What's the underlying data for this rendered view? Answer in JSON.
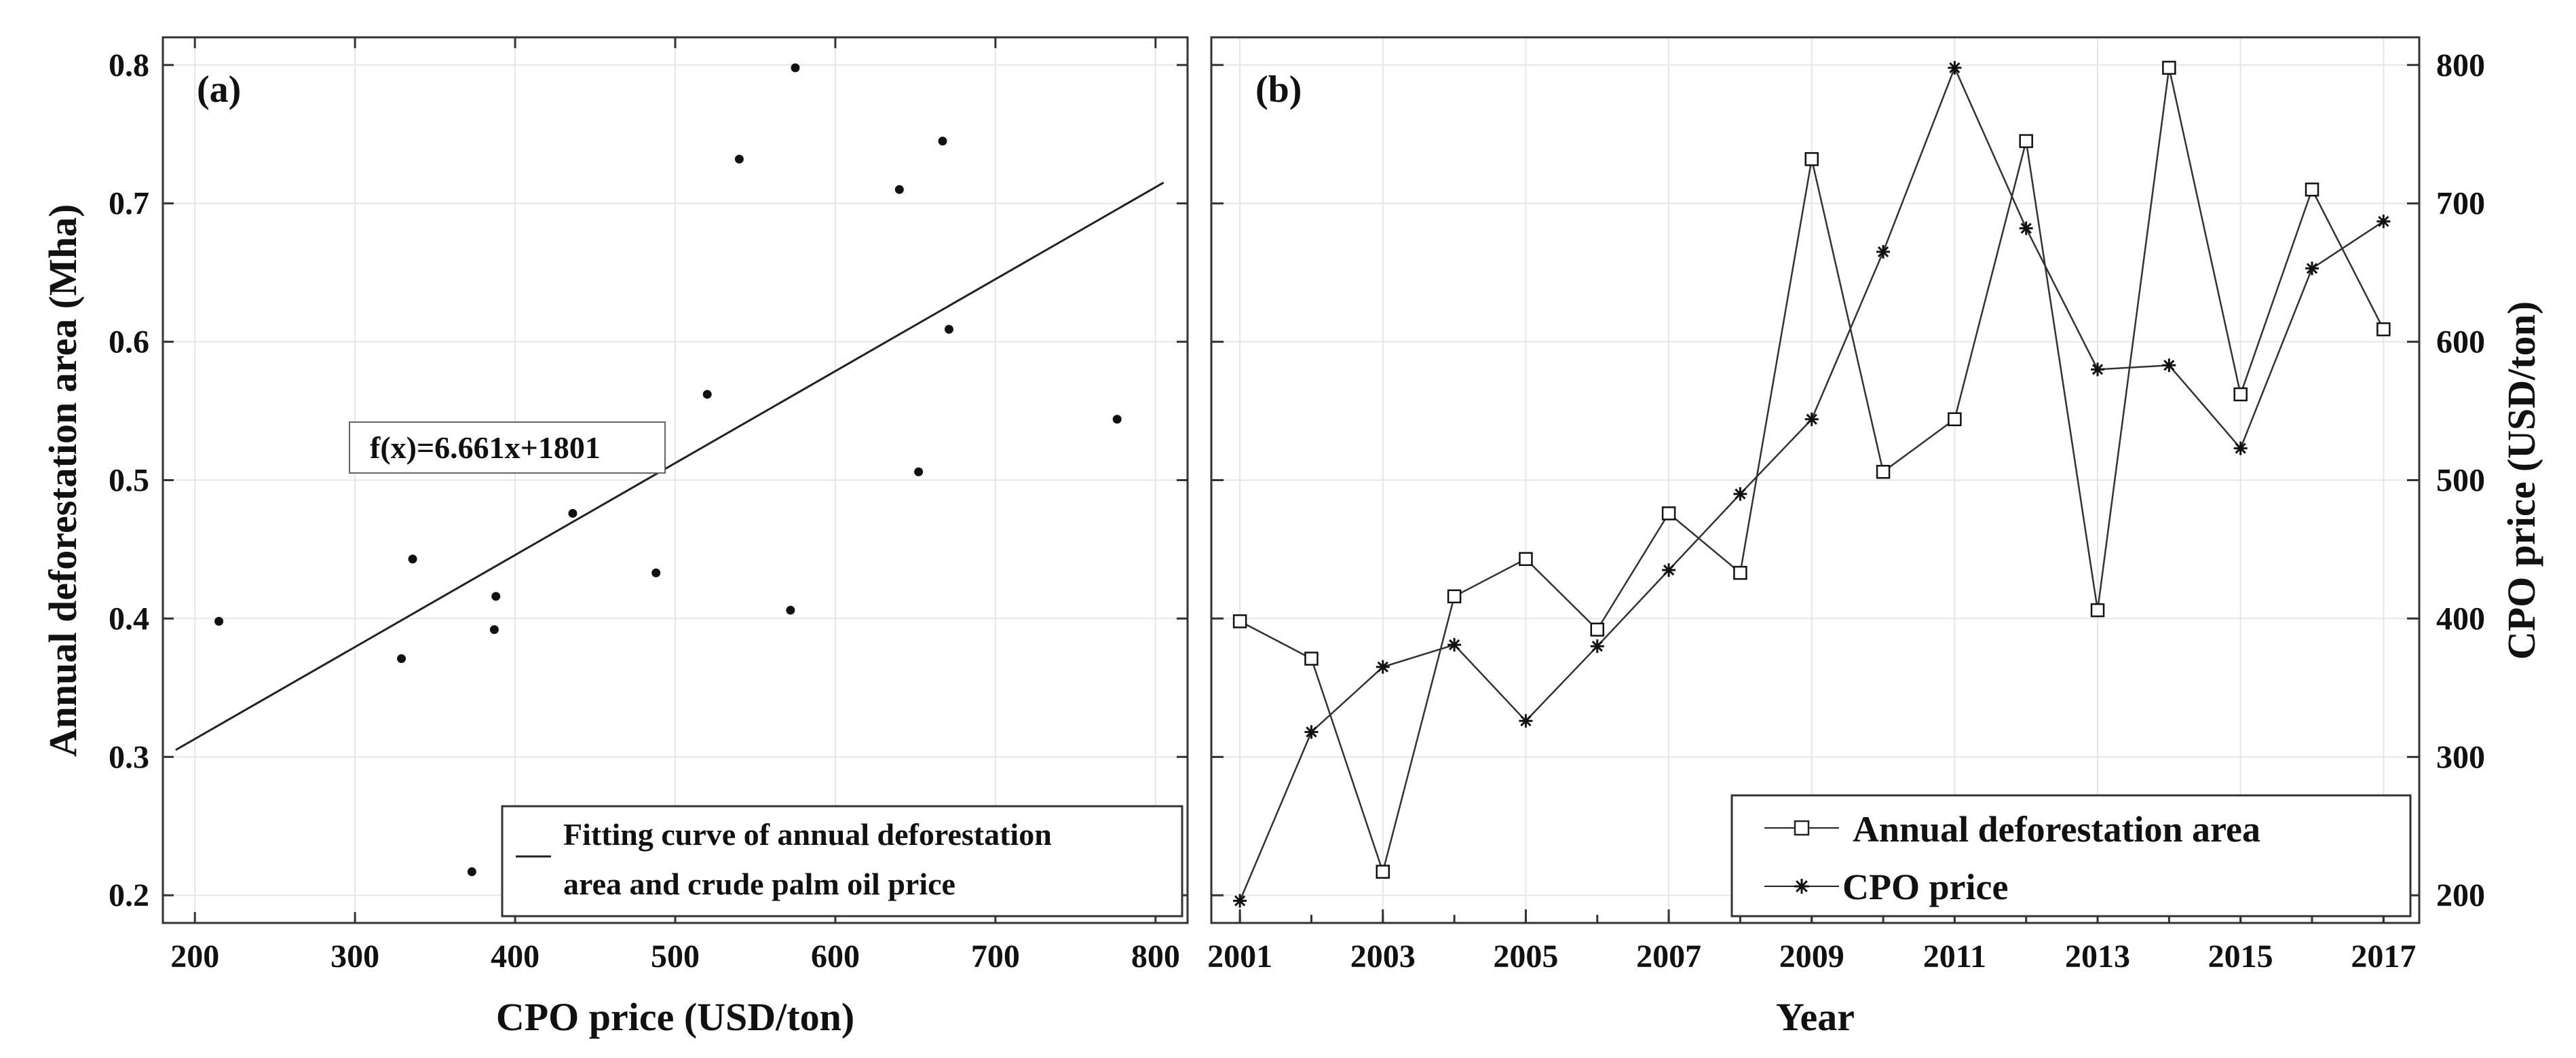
{
  "chart_data": [
    {
      "panel": "(a)",
      "type": "scatter",
      "xlabel": "CPO price (USD/ton)",
      "ylabel": "Annual deforestation area (Mha)",
      "xlim": [
        180,
        820
      ],
      "ylim": [
        0.18,
        0.82
      ],
      "xticks": [
        "200",
        "300",
        "400",
        "500",
        "600",
        "700",
        "800"
      ],
      "yticks": [
        "0.2",
        "0.3",
        "0.4",
        "0.5",
        "0.6",
        "0.7",
        "0.8"
      ],
      "grid": true,
      "points": [
        {
          "x": 215,
          "y": 0.398
        },
        {
          "x": 329,
          "y": 0.371
        },
        {
          "x": 336,
          "y": 0.443
        },
        {
          "x": 373,
          "y": 0.217
        },
        {
          "x": 387,
          "y": 0.392
        },
        {
          "x": 388,
          "y": 0.416
        },
        {
          "x": 436,
          "y": 0.476
        },
        {
          "x": 488,
          "y": 0.433
        },
        {
          "x": 520,
          "y": 0.562
        },
        {
          "x": 540,
          "y": 0.732
        },
        {
          "x": 572,
          "y": 0.406
        },
        {
          "x": 575,
          "y": 0.798
        },
        {
          "x": 640,
          "y": 0.71
        },
        {
          "x": 652,
          "y": 0.506
        },
        {
          "x": 667,
          "y": 0.745
        },
        {
          "x": 671,
          "y": 0.609
        },
        {
          "x": 776,
          "y": 0.544
        }
      ],
      "fit_line": {
        "x": [
          188,
          805
        ],
        "y": [
          0.305,
          0.715
        ]
      },
      "annotation": "f(x)=6.661x+1801",
      "legend": [
        "Fitting curve of annual deforestation",
        "area and crude palm oil price"
      ],
      "legend_position": "bottom-right"
    },
    {
      "panel": "(b)",
      "type": "line",
      "xlabel": "Year",
      "ylabel": "CPO price (USD/ton)",
      "xlim": [
        2000.6,
        2017.5
      ],
      "ylim_left": [
        0.18,
        0.82
      ],
      "ylim_right": [
        180,
        820
      ],
      "xticks": [
        "2001",
        "2003",
        "2005",
        "2007",
        "2009",
        "2011",
        "2013",
        "2015",
        "2017"
      ],
      "yticks_right": [
        "200",
        "300",
        "400",
        "500",
        "600",
        "700",
        "800"
      ],
      "grid": true,
      "x": [
        2001,
        2002,
        2003,
        2004,
        2005,
        2006,
        2007,
        2008,
        2009,
        2010,
        2011,
        2012,
        2013,
        2014,
        2015,
        2016,
        2017
      ],
      "series": [
        {
          "name": "Annual deforestation area",
          "marker": "square",
          "axis": "left",
          "values": [
            0.398,
            0.371,
            0.217,
            0.416,
            0.443,
            0.392,
            0.476,
            0.433,
            0.732,
            0.506,
            0.544,
            0.745,
            0.406,
            0.798,
            0.562,
            0.71,
            0.609
          ]
        },
        {
          "name": "CPO price",
          "marker": "asterisk",
          "axis": "right",
          "values": [
            196,
            318,
            365,
            381,
            326,
            380,
            435,
            490,
            544,
            665,
            798,
            682,
            580,
            583,
            523,
            653,
            687
          ]
        }
      ],
      "legend_position": "bottom-right"
    }
  ]
}
